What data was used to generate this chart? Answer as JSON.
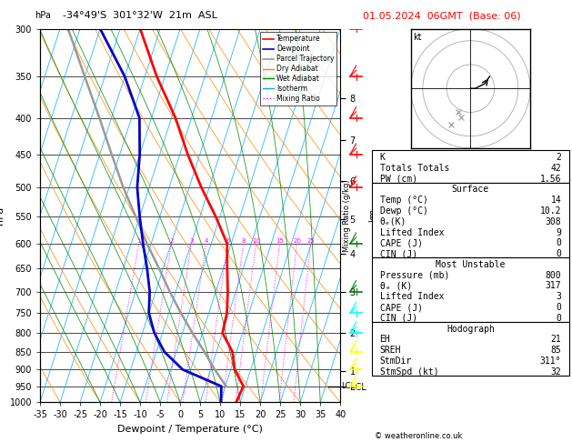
{
  "title_left": "-34°49'S  301°32'W  21m  ASL",
  "title_right": "01.05.2024  06GMT  (Base: 06)",
  "xlabel": "Dewpoint / Temperature (°C)",
  "ylabel_left": "hPa",
  "pressure_levels": [
    300,
    350,
    400,
    450,
    500,
    550,
    600,
    650,
    700,
    750,
    800,
    850,
    900,
    950,
    1000
  ],
  "pressure_labels": [
    "300",
    "350",
    "400",
    "450",
    "500",
    "550",
    "600",
    "650",
    "700",
    "750",
    "800",
    "850",
    "900",
    "950",
    "1000"
  ],
  "temp_data": {
    "pressure": [
      1000,
      950,
      900,
      850,
      800,
      750,
      700,
      650,
      600,
      550,
      500,
      450,
      400,
      350,
      300
    ],
    "temperature": [
      14.0,
      14.5,
      11.0,
      9.0,
      5.0,
      4.5,
      3.0,
      1.0,
      -1.0,
      -6.0,
      -12.0,
      -18.0,
      -24.0,
      -32.0,
      -40.0
    ]
  },
  "dewp_data": {
    "pressure": [
      1000,
      950,
      900,
      850,
      800,
      750,
      700,
      650,
      600,
      550,
      500,
      450,
      400,
      350,
      300
    ],
    "dewpoint": [
      10.2,
      9.0,
      -2.0,
      -8.0,
      -12.0,
      -15.0,
      -16.5,
      -19.0,
      -22.0,
      -25.0,
      -28.0,
      -30.0,
      -33.0,
      -40.0,
      -50.0
    ]
  },
  "parcel_data": {
    "pressure": [
      950,
      900,
      850,
      800,
      750,
      700,
      650,
      600,
      550,
      500,
      450,
      400,
      350,
      300
    ],
    "temperature": [
      10.2,
      6.0,
      2.0,
      -2.5,
      -7.0,
      -11.5,
      -16.0,
      -21.0,
      -26.0,
      -31.5,
      -37.0,
      -43.0,
      -50.0,
      -58.0
    ]
  },
  "xmin": -35,
  "xmax": 40,
  "pmin": 300,
  "pmax": 1000,
  "skew_factor": 30.0,
  "temp_color": "#FF0000",
  "dewp_color": "#0000CC",
  "parcel_color": "#999999",
  "dry_adiabat_color": "#FF8800",
  "wet_adiabat_color": "#008800",
  "isotherm_color": "#00AAFF",
  "mixing_ratio_color": "#FF00FF",
  "km_levels": [
    "8",
    "7",
    "6",
    "5",
    "4",
    "3",
    "2",
    "1",
    "LCL"
  ],
  "km_pressures": [
    375,
    430,
    490,
    555,
    620,
    700,
    800,
    905,
    950
  ],
  "mixing_ratio_lines": [
    1,
    2,
    3,
    4,
    6,
    8,
    10,
    15,
    20,
    25
  ],
  "lcl_pressure": 950,
  "stats": {
    "K": 2,
    "Totals_Totals": 42,
    "PW_cm": 1.56,
    "Surface_Temp": 14,
    "Surface_Dewp": 10.2,
    "Surface_theta_e": 308,
    "Surface_LI": 9,
    "Surface_CAPE": 0,
    "Surface_CIN": 0,
    "MU_Pressure": 800,
    "MU_theta_e": 317,
    "MU_LI": 3,
    "MU_CAPE": 0,
    "MU_CIN": 0,
    "EH": 21,
    "SREH": 85,
    "StmDir": 311,
    "StmSpd": 32
  },
  "wind_barb_pressures": [
    300,
    350,
    400,
    450,
    500,
    600,
    700,
    750,
    800,
    850,
    900,
    950
  ],
  "wind_barb_colors": [
    "red",
    "red",
    "red",
    "red",
    "red",
    "green",
    "green",
    "cyan",
    "cyan",
    "yellow",
    "yellow",
    "yellow"
  ]
}
